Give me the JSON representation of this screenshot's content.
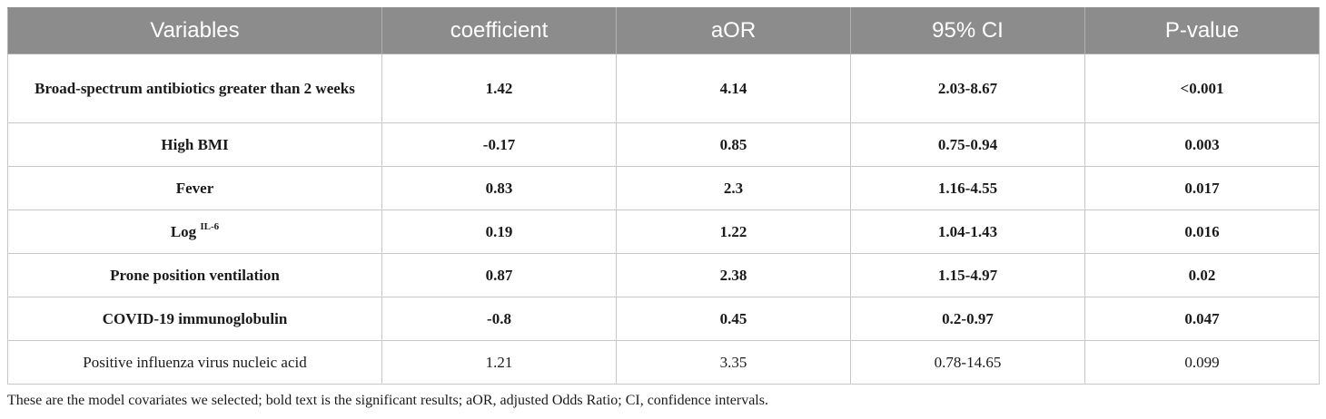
{
  "table": {
    "headers": [
      "Variables",
      "coefficient",
      "aOR",
      "95% CI",
      "P-value"
    ],
    "rows": [
      {
        "variable": "Broad-spectrum antibiotics greater than 2 weeks",
        "sup": "",
        "coefficient": "1.42",
        "aOR": "4.14",
        "ci": "2.03-8.67",
        "p": "<0.001",
        "bold": true
      },
      {
        "variable": "High BMI",
        "sup": "",
        "coefficient": "-0.17",
        "aOR": "0.85",
        "ci": "0.75-0.94",
        "p": "0.003",
        "bold": true
      },
      {
        "variable": "Fever",
        "sup": "",
        "coefficient": "0.83",
        "aOR": "2.3",
        "ci": "1.16-4.55",
        "p": "0.017",
        "bold": true
      },
      {
        "variable": "Log",
        "sup": "IL-6",
        "coefficient": "0.19",
        "aOR": "1.22",
        "ci": "1.04-1.43",
        "p": "0.016",
        "bold": true
      },
      {
        "variable": "Prone position ventilation",
        "sup": "",
        "coefficient": "0.87",
        "aOR": "2.38",
        "ci": "1.15-4.97",
        "p": "0.02",
        "bold": true
      },
      {
        "variable": "COVID-19 immunoglobulin",
        "sup": "",
        "coefficient": "-0.8",
        "aOR": "0.45",
        "ci": "0.2-0.97",
        "p": "0.047",
        "bold": true
      },
      {
        "variable": "Positive influenza virus nucleic acid",
        "sup": "",
        "coefficient": "1.21",
        "aOR": "3.35",
        "ci": "0.78-14.65",
        "p": "0.099",
        "bold": false
      }
    ]
  },
  "footnote": "These are the model covariates we selected; bold text is the significant results; aOR, adjusted Odds Ratio; CI, confidence intervals.",
  "colors": {
    "header_bg": "#8c8c8c",
    "header_text": "#ffffff",
    "border": "#c8c8c8"
  }
}
